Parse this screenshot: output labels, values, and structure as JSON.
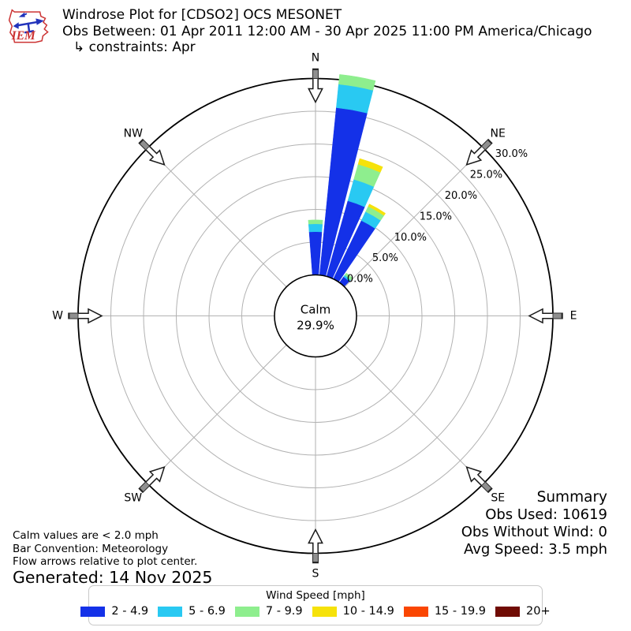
{
  "header": {
    "logo_text": "IEM",
    "title": "Windrose Plot for [CDSO2] OCS MESONET",
    "subtitle": "Obs Between: 01 Apr 2011 12:00 AM - 30 Apr 2025 11:00 PM America/Chicago",
    "constraints": "↳ constraints: Apr"
  },
  "chart_data": {
    "type": "windrose-polar-bar",
    "title": "Windrose Plot for [CDSO2] OCS MESONET",
    "units": "percent frequency by wind direction, stacked by wind speed [mph]",
    "compass_labels": [
      "N",
      "NE",
      "E",
      "SE",
      "S",
      "SW",
      "W",
      "NW"
    ],
    "radial_tick_values": [
      0,
      5,
      10,
      15,
      20,
      25,
      30
    ],
    "radial_tick_labels": [
      "0.0%",
      "5.0%",
      "10.0%",
      "15.0%",
      "20.0%",
      "25.0%",
      "30.0%"
    ],
    "rmax_pct": 30,
    "sector_width_deg": 8.6,
    "bins": [
      {
        "label": "2 - 4.9",
        "color": "#1431e8"
      },
      {
        "label": "5 - 6.9",
        "color": "#29c9f2"
      },
      {
        "label": "7 - 9.9",
        "color": "#8eee8e"
      },
      {
        "label": "10 - 14.9",
        "color": "#f6e20a"
      },
      {
        "label": "15 - 19.9",
        "color": "#fa4602"
      },
      {
        "label": "20+",
        "color": "#700c04"
      }
    ],
    "bars": [
      {
        "dir_deg": 0,
        "segments_pct": [
          6.6,
          1.2,
          0.6,
          0,
          0,
          0
        ]
      },
      {
        "dir_deg": 10,
        "segments_pct": [
          25.7,
          3.6,
          1.5,
          0,
          0,
          0
        ]
      },
      {
        "dir_deg": 20,
        "segments_pct": [
          12.0,
          3.4,
          2.4,
          0.9,
          0,
          0
        ]
      },
      {
        "dir_deg": 30,
        "segments_pct": [
          9.9,
          1.5,
          0.9,
          0.4,
          0,
          0
        ]
      },
      {
        "dir_deg": 40,
        "segments_pct": [
          1.1,
          0.3,
          0.4,
          0,
          0,
          0
        ]
      }
    ],
    "calm": {
      "label": "Calm",
      "value": "29.9%"
    },
    "grid": "on",
    "legend_position": "bottom-center"
  },
  "summary": {
    "title": "Summary",
    "rows": [
      {
        "label": "Obs Used:",
        "value": "10619"
      },
      {
        "label": "Obs Without Wind:",
        "value": "0"
      },
      {
        "label": "Avg Speed:",
        "value": "3.5 mph"
      }
    ]
  },
  "notes": {
    "lines": [
      "Calm values are < 2.0 mph",
      "Bar Convention: Meteorology",
      "Flow arrows relative to plot center."
    ],
    "generated": "Generated: 14 Nov 2025"
  },
  "legend": {
    "title": "Wind Speed [mph]",
    "items": [
      {
        "label": "2 - 4.9",
        "color": "#1431e8"
      },
      {
        "label": "5 - 6.9",
        "color": "#29c9f2"
      },
      {
        "label": "7 - 9.9",
        "color": "#8eee8e"
      },
      {
        "label": "10 - 14.9",
        "color": "#f6e20a"
      },
      {
        "label": "15 - 19.9",
        "color": "#fa4602"
      },
      {
        "label": "20+",
        "color": "#700c04"
      }
    ]
  }
}
